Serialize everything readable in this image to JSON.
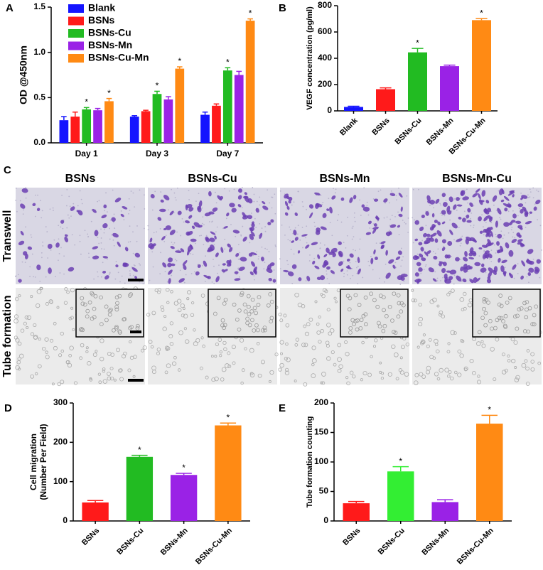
{
  "chart_data": [
    {
      "type": "bar",
      "label": "A",
      "ylabel": "OD @450nm",
      "categories": [
        "Day 1",
        "Day 3",
        "Day 7"
      ],
      "series": [
        {
          "name": "Blank",
          "color": "#1414ff",
          "values": [
            0.25,
            0.29,
            0.31
          ],
          "errors": [
            0.04,
            0.01,
            0.03
          ],
          "significance": [
            null,
            null,
            null
          ]
        },
        {
          "name": "BSNs",
          "color": "#ff1a1a",
          "values": [
            0.29,
            0.35,
            0.41
          ],
          "errors": [
            0.05,
            0.01,
            0.02
          ],
          "significance": [
            null,
            null,
            null
          ]
        },
        {
          "name": "BSNs-Cu",
          "color": "#22bb22",
          "values": [
            0.37,
            0.54,
            0.8
          ],
          "errors": [
            0.02,
            0.03,
            0.03
          ],
          "significance": [
            "*",
            "*",
            "*"
          ]
        },
        {
          "name": "BSNs-Mn",
          "color": "#9a22e6",
          "values": [
            0.36,
            0.48,
            0.75
          ],
          "errors": [
            0.02,
            0.03,
            0.04
          ],
          "significance": [
            null,
            null,
            null
          ]
        },
        {
          "name": "BSNs-Cu-Mn",
          "color": "#ff8a14",
          "values": [
            0.46,
            0.82,
            1.35
          ],
          "errors": [
            0.03,
            0.02,
            0.02
          ],
          "significance": [
            "*",
            "*",
            "*"
          ]
        }
      ],
      "ylim": [
        0,
        1.5
      ],
      "yticks": [
        {
          "value": 0,
          "label": "0.0"
        },
        0.5,
        {
          "value": 1,
          "label": "1.0"
        },
        1.5
      ],
      "legend": "upper-left"
    },
    {
      "type": "bar",
      "label": "B",
      "ylabel": "VEGF concentration (pg/ml)",
      "categories": [
        "Blank",
        "BSNs",
        "BSNs-Cu",
        "BSNs-Mn",
        "BSNs-Cu-Mn"
      ],
      "values": [
        30,
        165,
        445,
        340,
        690
      ],
      "errors": [
        5,
        10,
        30,
        8,
        12
      ],
      "significance": [
        null,
        null,
        "*",
        null,
        "*"
      ],
      "colors": [
        "#1414ff",
        "#ff1a1a",
        "#22bb22",
        "#9a22e6",
        "#ff8a14"
      ],
      "ylim": [
        0,
        800
      ],
      "yticks": [
        0,
        200,
        400,
        600,
        800
      ]
    },
    {
      "type": "bar",
      "label": "D",
      "ylabel": [
        "Cell migration",
        "(Number Per Field)"
      ],
      "categories": [
        "BSNs",
        "BSNs-Cu",
        "BSNs-Mn",
        "BSNs-Cu-Mn"
      ],
      "values": [
        47,
        163,
        117,
        243
      ],
      "errors": [
        5,
        4,
        4,
        6
      ],
      "significance": [
        null,
        "*",
        "*",
        "*"
      ],
      "colors": [
        "#ff1a1a",
        "#22bb22",
        "#9a22e6",
        "#ff8a14"
      ],
      "ylim": [
        0,
        300
      ],
      "yticks": [
        0,
        100,
        200,
        300
      ]
    },
    {
      "type": "bar",
      "label": "E",
      "ylabel": "Tube formation counting",
      "categories": [
        "BSNs",
        "BSNs-Cu",
        "BSNs-Mn",
        "BSNs-Cu-Mn"
      ],
      "values": [
        30,
        84,
        32,
        165
      ],
      "errors": [
        3,
        8,
        4,
        14
      ],
      "significance": [
        null,
        "*",
        null,
        "*"
      ],
      "colors": [
        "#ff1a1a",
        "#33ee33",
        "#9a22e6",
        "#ff8a14"
      ],
      "ylim": [
        0,
        200
      ],
      "yticks": [
        0,
        50,
        100,
        150,
        200
      ]
    }
  ],
  "panel_c": {
    "label": "C",
    "columns": [
      "BSNs",
      "BSNs-Cu",
      "BSNs-Mn",
      "BSNs-Mn-Cu"
    ],
    "rows": [
      "Transwell",
      "Tube formation"
    ]
  }
}
